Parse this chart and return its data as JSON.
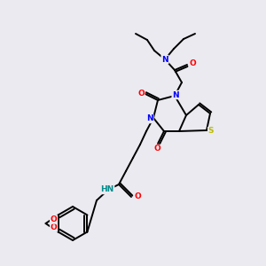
{
  "background_color": "#eaeaf0",
  "atom_colors": {
    "N": "#0000ff",
    "O": "#ff0000",
    "S": "#bbbb00",
    "HN": "#008b8b",
    "C": "#000000"
  },
  "figsize": [
    3.0,
    3.0
  ],
  "dpi": 100
}
